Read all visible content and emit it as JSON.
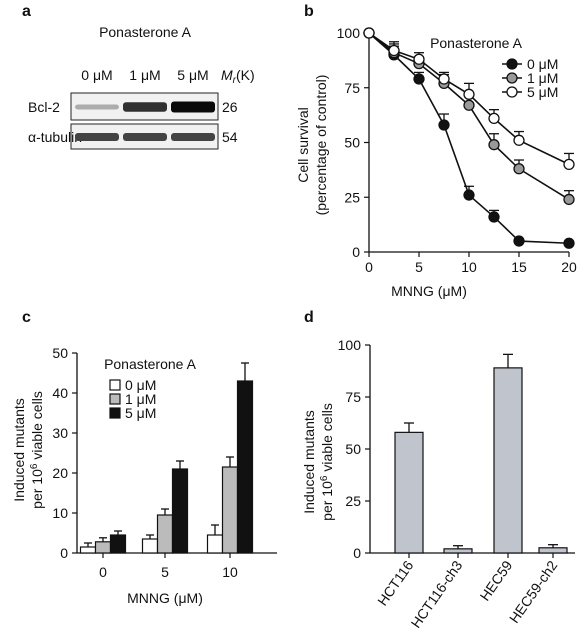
{
  "panels": {
    "a": "a",
    "b": "b",
    "c": "c",
    "d": "d"
  },
  "blot": {
    "title": "Ponasterone A",
    "lanes": [
      "0 μM",
      "1 μM",
      "5 μM"
    ],
    "mr_label": "Mr(K)",
    "mr_main": "M",
    "mr_sub": "r",
    "mr_tail": "(K)",
    "rows": [
      {
        "label": "Bcl-2",
        "mw": "26",
        "band_intensity": [
          0.15,
          0.8,
          1.0
        ]
      },
      {
        "label": "α-tubulin",
        "mw": "54",
        "band_intensity": [
          0.7,
          0.7,
          0.7
        ]
      }
    ]
  },
  "chart_data": [
    {
      "panel": "b",
      "type": "line",
      "xlabel": "MNNG (μM)",
      "ylabel_line1": "Cell survival",
      "ylabel_line2": "(percentage of control)",
      "xlim": [
        0,
        20
      ],
      "ylim": [
        0,
        100
      ],
      "xticks": [
        0,
        5,
        10,
        15,
        20
      ],
      "yticks": [
        0,
        25,
        50,
        75,
        100
      ],
      "legend_title": "Ponasterone A",
      "legend_position": "top-right",
      "series": [
        {
          "name": "0 μM",
          "color": "#111111",
          "x": [
            0,
            2.5,
            5,
            7.5,
            10,
            12.5,
            15,
            20
          ],
          "y": [
            100,
            90,
            79,
            58,
            26,
            16,
            5,
            4
          ],
          "err": [
            0,
            4,
            3,
            5,
            4,
            3,
            1,
            1
          ]
        },
        {
          "name": "1 μM",
          "color": "#999999",
          "x": [
            0,
            2.5,
            5,
            7.5,
            10,
            12.5,
            15,
            20
          ],
          "y": [
            100,
            91,
            86,
            77,
            67,
            49,
            38,
            24
          ],
          "err": [
            0,
            4,
            3,
            4,
            5,
            5,
            4,
            4
          ]
        },
        {
          "name": "5 μM",
          "color": "#ffffff",
          "x": [
            0,
            2.5,
            5,
            7.5,
            10,
            12.5,
            15,
            20
          ],
          "y": [
            100,
            92,
            88,
            79,
            72,
            61,
            51,
            40
          ],
          "err": [
            0,
            4,
            3,
            3,
            5,
            4,
            4,
            5
          ]
        }
      ]
    },
    {
      "panel": "c",
      "type": "bar",
      "xlabel": "MNNG (μM)",
      "ylabel_line1": "Induced mutants",
      "ylabel_line2_pre": "per 10",
      "ylabel_line2_sup": "6",
      "ylabel_line2_post": " viable cells",
      "categories": [
        "0",
        "5",
        "10"
      ],
      "ylim": [
        0,
        50
      ],
      "yticks": [
        0,
        10,
        20,
        30,
        40,
        50
      ],
      "legend_title": "Ponasterone A",
      "legend_position": "top-left",
      "series": [
        {
          "name": "0 μM",
          "color": "#ffffff",
          "values": [
            1.5,
            3.5,
            4.5
          ],
          "err": [
            1,
            1,
            2.5
          ]
        },
        {
          "name": "1 μM",
          "color": "#bbbbbb",
          "values": [
            2.8,
            9.5,
            21.5
          ],
          "err": [
            1,
            1.5,
            2.5
          ]
        },
        {
          "name": "5 μM",
          "color": "#111111",
          "values": [
            4.5,
            21,
            43
          ],
          "err": [
            1,
            2,
            4.5
          ]
        }
      ]
    },
    {
      "panel": "d",
      "type": "bar",
      "ylabel_line1": "Induced mutants",
      "ylabel_line2_pre": "per 10",
      "ylabel_line2_sup": "6",
      "ylabel_line2_post": " viable cells",
      "categories": [
        "HCT116",
        "HCT116-ch3",
        "HEC59",
        "HEC59-ch2"
      ],
      "values": [
        58,
        2,
        89,
        2.5
      ],
      "err": [
        4.5,
        1.5,
        6.5,
        1.5
      ],
      "color": "#c0c4cc",
      "ylim": [
        0,
        100
      ],
      "yticks": [
        0,
        25,
        50,
        75,
        100
      ]
    }
  ]
}
